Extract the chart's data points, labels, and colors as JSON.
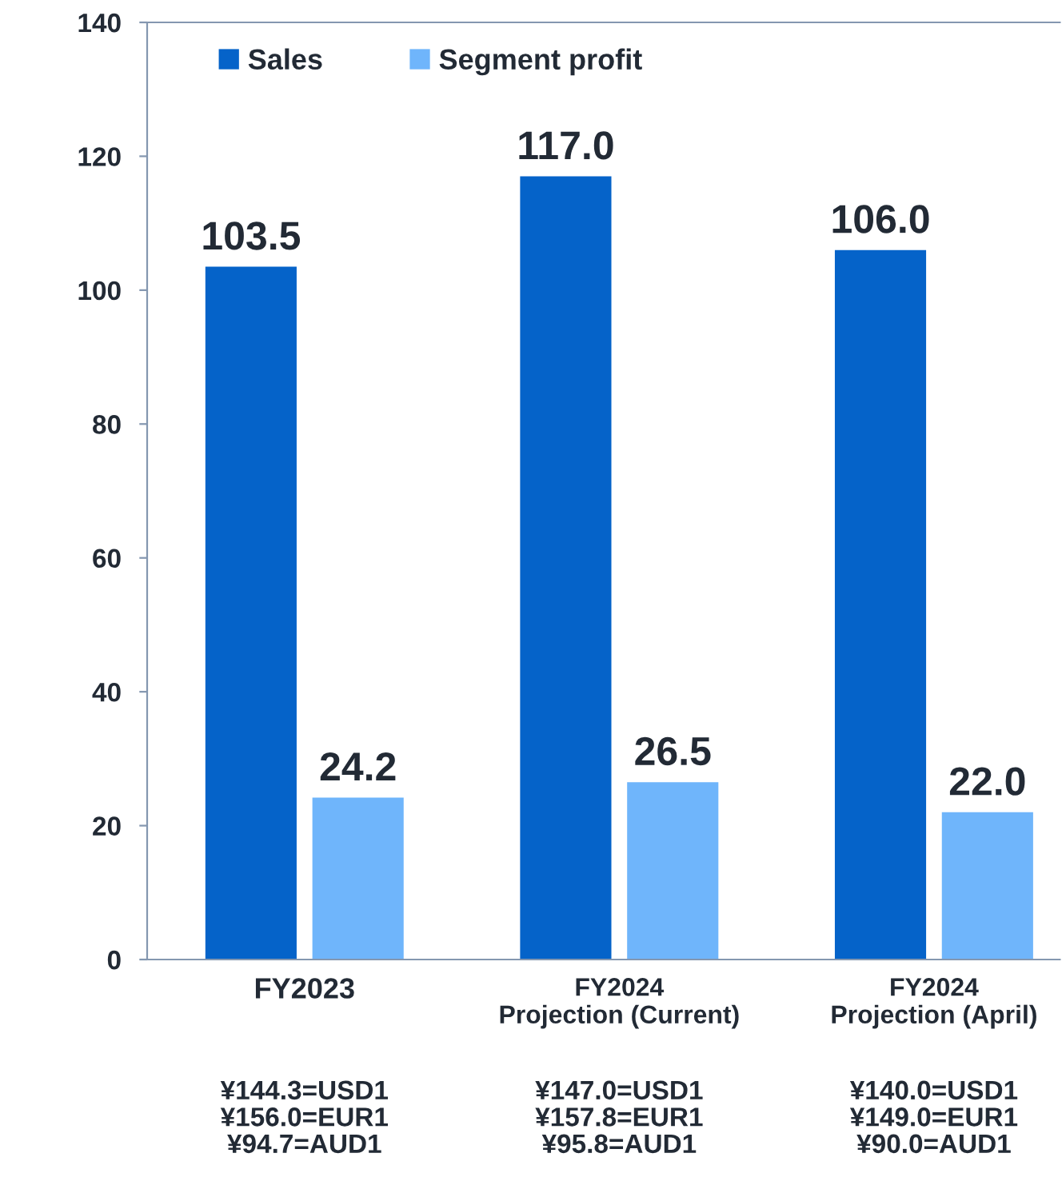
{
  "chart_data": {
    "type": "bar",
    "categories": [
      "FY2023",
      "FY2024\nProjection (Current)",
      "FY2024\nProjection (April)"
    ],
    "series": [
      {
        "name": "Sales",
        "color": "#0563c9",
        "values": [
          103.5,
          117.0,
          106.0
        ],
        "value_labels": [
          "103.5",
          "117.0",
          "106.0"
        ]
      },
      {
        "name": "Segment profit",
        "color": "#6fb5fb",
        "values": [
          24.2,
          26.5,
          22.0
        ],
        "value_labels": [
          "24.2",
          "26.5",
          "22.0"
        ]
      }
    ],
    "ylim": [
      0,
      140
    ],
    "yticks": [
      0,
      20,
      40,
      60,
      80,
      100,
      120,
      140
    ],
    "legend": "top left",
    "grid": false,
    "annotations": [
      "¥144.3=USD1\n¥156.0=EUR1\n¥94.7=AUD1",
      "¥147.0=USD1\n¥157.8=EUR1\n¥95.8=AUD1",
      "¥140.0=USD1\n¥149.0=EUR1\n¥90.0=AUD1"
    ]
  }
}
